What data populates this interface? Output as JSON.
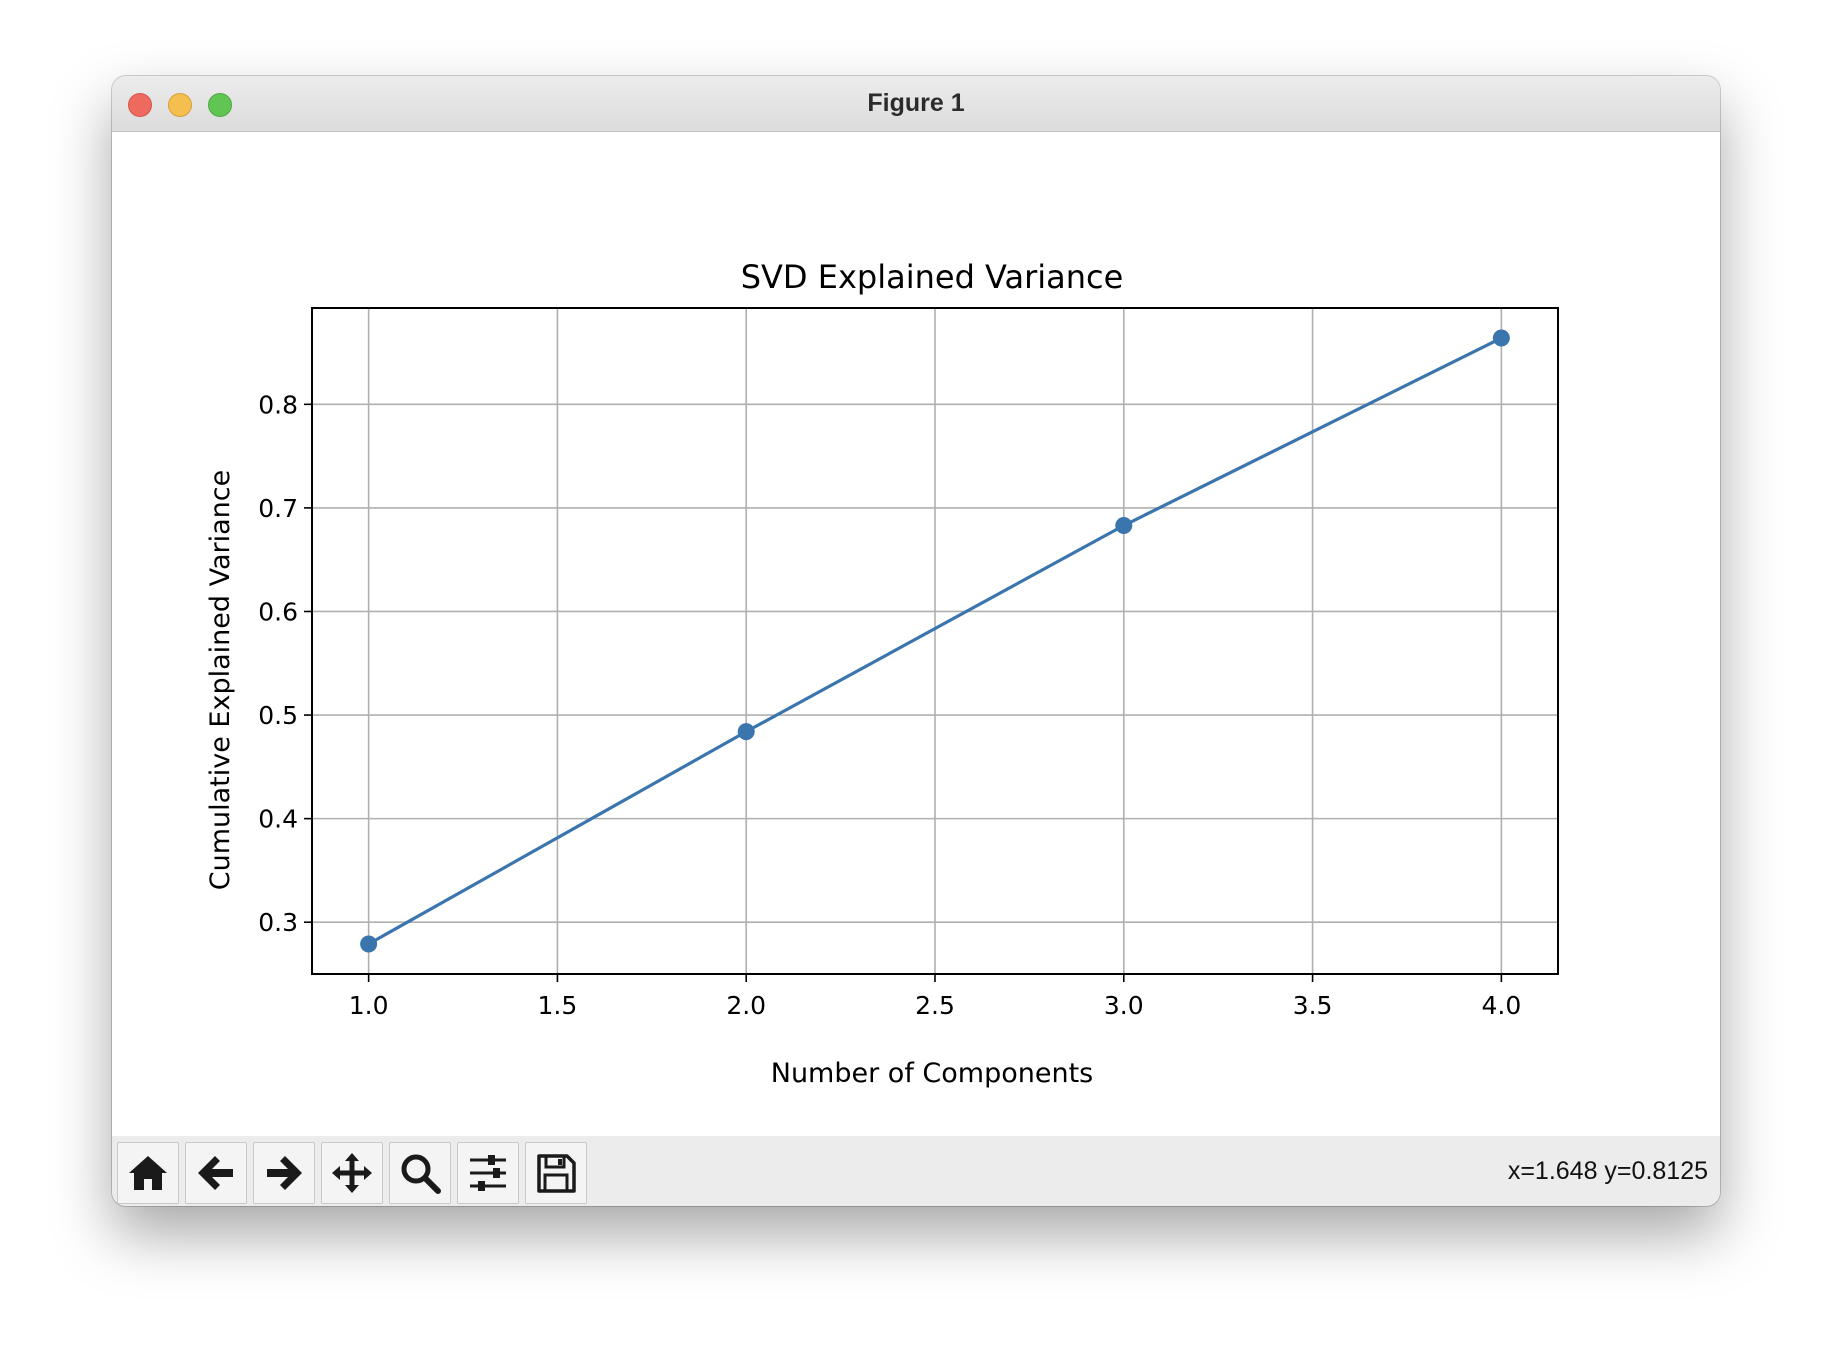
{
  "window": {
    "title": "Figure 1"
  },
  "toolbar": {
    "buttons": [
      {
        "name": "home-button",
        "icon": "home-icon"
      },
      {
        "name": "back-button",
        "icon": "arrow-left-icon"
      },
      {
        "name": "forward-button",
        "icon": "arrow-right-icon"
      },
      {
        "name": "pan-button",
        "icon": "move-icon"
      },
      {
        "name": "zoom-button",
        "icon": "magnifier-icon"
      },
      {
        "name": "configure-subplots-button",
        "icon": "sliders-icon"
      },
      {
        "name": "save-button",
        "icon": "floppy-disk-icon"
      }
    ],
    "coords": "x=1.648 y=0.8125"
  },
  "colors": {
    "series": "#3a75ae",
    "grid": "#b0b0b0",
    "close": "#ee6a5f",
    "minimize": "#f5bf4f",
    "maximize": "#61c554"
  },
  "chart_data": {
    "type": "line",
    "title": "SVD Explained Variance",
    "xlabel": "Number of Components",
    "ylabel": "Cumulative Explained Variance",
    "x": [
      1,
      2,
      3,
      4
    ],
    "series": [
      {
        "values": [
          0.279,
          0.484,
          0.683,
          0.864
        ]
      }
    ],
    "xlim": [
      0.85,
      4.15
    ],
    "ylim": [
      0.25,
      0.893
    ],
    "xticks": [
      "1.0",
      "1.5",
      "2.0",
      "2.5",
      "3.0",
      "3.5",
      "4.0"
    ],
    "yticks": [
      "0.3",
      "0.4",
      "0.5",
      "0.6",
      "0.7",
      "0.8"
    ],
    "grid": true,
    "markers": true
  }
}
